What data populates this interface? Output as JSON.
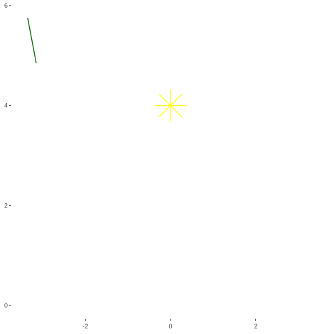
{
  "chart_data": {
    "type": "scatter",
    "title": "",
    "xlabel": "",
    "ylabel": "",
    "xlim": [
      -4,
      4
    ],
    "ylim": [
      0,
      6
    ],
    "grid": false,
    "x_ticks": [
      {
        "value": -2,
        "label": "-2"
      },
      {
        "value": 0,
        "label": "0"
      },
      {
        "value": 2,
        "label": "2"
      }
    ],
    "y_ticks": [
      {
        "value": 0,
        "label": "0"
      },
      {
        "value": 2,
        "label": "2"
      },
      {
        "value": 4,
        "label": "4"
      },
      {
        "value": 6,
        "label": "6"
      }
    ],
    "segments": [
      {
        "x": [
          -3.35,
          -3.15
        ],
        "y": [
          5.75,
          4.85
        ],
        "color": "#006400"
      }
    ],
    "points": [
      {
        "x": 0,
        "y": 4,
        "shape": "asterisk",
        "color": "#ffff00"
      }
    ]
  }
}
